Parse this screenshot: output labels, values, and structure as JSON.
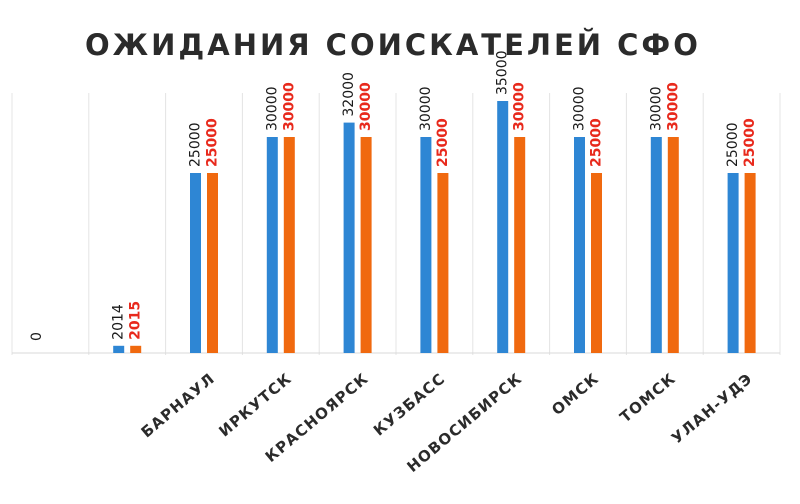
{
  "chart_data": {
    "type": "bar",
    "title": "ОЖИДАНИЯ СОИСКАТЕЛЕЙ СФО",
    "categories": [
      "",
      "",
      "БАРНАУЛ",
      "ИРКУТСК",
      "КРАСНОЯРСК",
      "КУЗБАСС",
      "НОВОСИБИРСК",
      "ОМСК",
      "ТОМСК",
      "УЛАН-УДЭ"
    ],
    "series": [
      {
        "name": "2014",
        "color": "#2e86d4",
        "values": [
          null,
          1000,
          25000,
          30000,
          32000,
          30000,
          35000,
          30000,
          30000,
          25000
        ]
      },
      {
        "name": "2015",
        "color": "#f0690f",
        "values": [
          null,
          1000,
          25000,
          30000,
          30000,
          25000,
          30000,
          25000,
          30000,
          25000
        ]
      }
    ],
    "data_labels": [
      [
        "0",
        "2014",
        "25000",
        "30000",
        "32000",
        "30000",
        "35000",
        "30000",
        "30000",
        "25000"
      ],
      [
        null,
        "2015",
        "25000",
        "30000",
        "30000",
        "25000",
        "30000",
        "25000",
        "30000",
        "25000"
      ]
    ],
    "label_colors": [
      "#1a1a1a",
      "#e8291c"
    ],
    "ylim": [
      0,
      40000
    ],
    "grid": "vertical-separators",
    "legend": "inline-labels"
  }
}
